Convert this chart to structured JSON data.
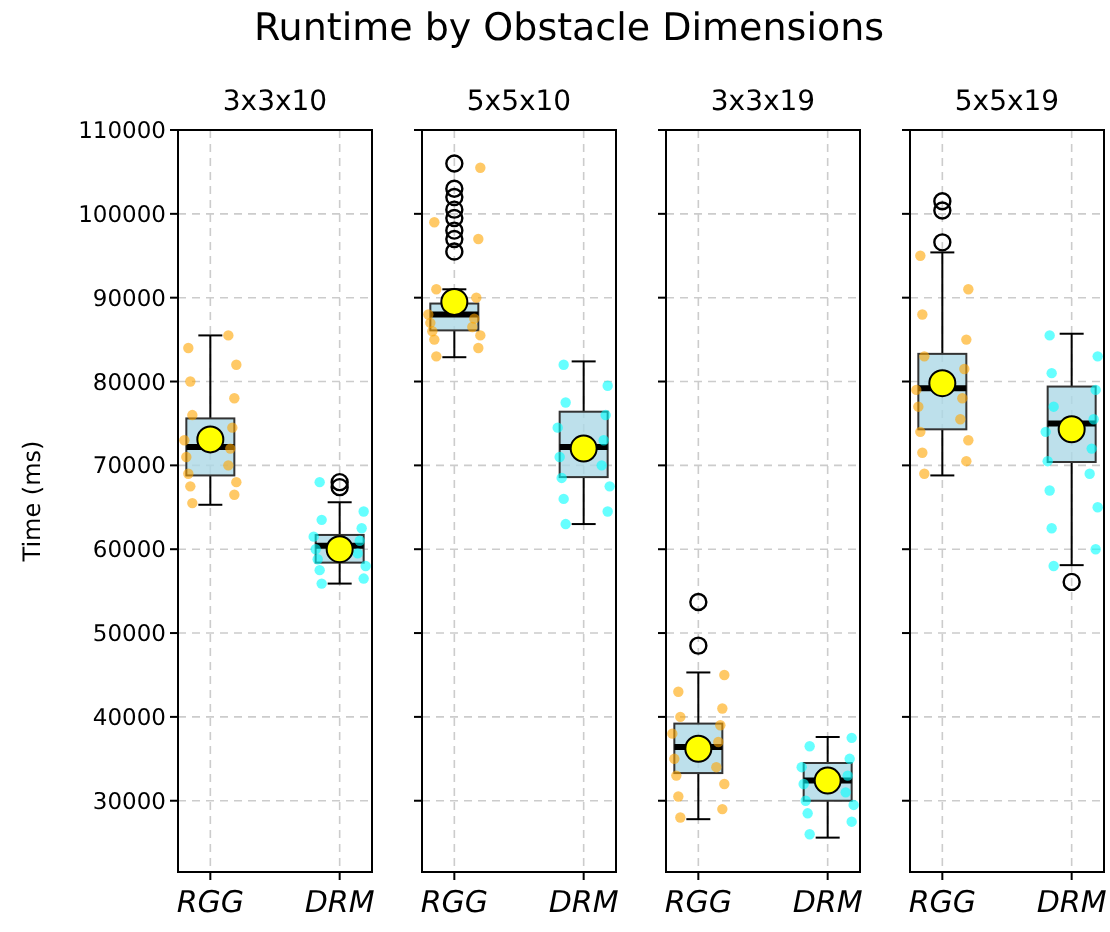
{
  "chart_data": [
    {
      "type": "box",
      "title": "3x3x10",
      "ylabel": "Time (ms)",
      "annotations": [
        "Runtime by Obstacle Dimensions"
      ],
      "categories": [
        "RGG",
        "DRM"
      ],
      "color": "#add8e6",
      "ylim": [
        21500,
        110000
      ],
      "yticks": [
        30000,
        40000,
        50000,
        60000,
        70000,
        80000,
        90000,
        100000,
        110000
      ],
      "grid": true,
      "boxes": [
        {
          "low": 65300,
          "q1": 68800,
          "median": 72200,
          "q3": 75600,
          "high": 85500,
          "mean": 73100
        },
        {
          "low": 55900,
          "q1": 58400,
          "median": 60400,
          "q3": 61700,
          "high": 65600,
          "mean": 60000,
          "outliers": [
            68000,
            67400
          ]
        }
      ],
      "series": [
        {
          "type": "scatter",
          "color": "#ffa500",
          "x": [
            "RGG",
            "RGG",
            "RGG",
            "RGG",
            "RGG",
            "RGG",
            "RGG",
            "RGG",
            "RGG",
            "RGG",
            "RGG",
            "RGG",
            "RGG",
            "RGG",
            "RGG",
            "RGG"
          ],
          "values": [
            65500,
            66500,
            67500,
            68000,
            69000,
            70000,
            71000,
            72000,
            73000,
            74500,
            76000,
            78000,
            80000,
            82000,
            84000,
            85500
          ]
        },
        {
          "type": "scatter",
          "color": "#00ffff",
          "x": [
            "DRM",
            "DRM",
            "DRM",
            "DRM",
            "DRM",
            "DRM",
            "DRM",
            "DRM",
            "DRM",
            "DRM",
            "DRM",
            "DRM",
            "DRM"
          ],
          "values": [
            55900,
            56500,
            57500,
            58000,
            58800,
            59500,
            60000,
            61000,
            61500,
            62500,
            63500,
            64500,
            68000
          ]
        }
      ]
    },
    {
      "type": "box",
      "title": "5x5x10",
      "tick_labels": "x",
      "categories": [
        "RGG",
        "DRM"
      ],
      "color": "#add8e6",
      "ylim": [
        21500,
        110000
      ],
      "yticks": [
        30000,
        40000,
        50000,
        60000,
        70000,
        80000,
        90000,
        100000,
        110000
      ],
      "grid": true,
      "boxes": [
        {
          "low": 82900,
          "q1": 86100,
          "median": 88000,
          "q3": 89300,
          "high": 91000,
          "mean": 89500,
          "outliers": [
            106000,
            103000,
            102000,
            100500,
            99500,
            98000,
            97000,
            95500
          ]
        },
        {
          "low": 63000,
          "q1": 68600,
          "median": 72200,
          "q3": 76400,
          "high": 82400,
          "mean": 72000
        }
      ],
      "series": [
        {
          "type": "scatter",
          "color": "#ffa500",
          "x": [
            "RGG",
            "RGG",
            "RGG",
            "RGG",
            "RGG",
            "RGG",
            "RGG",
            "RGG",
            "RGG",
            "RGG",
            "RGG",
            "RGG",
            "RGG",
            "RGG"
          ],
          "values": [
            83000,
            84000,
            85000,
            85500,
            86000,
            86500,
            87000,
            87500,
            88000,
            90000,
            91000,
            97000,
            99000,
            105500
          ]
        },
        {
          "type": "scatter",
          "color": "#00ffff",
          "x": [
            "DRM",
            "DRM",
            "DRM",
            "DRM",
            "DRM",
            "DRM",
            "DRM",
            "DRM",
            "DRM",
            "DRM",
            "DRM",
            "DRM",
            "DRM"
          ],
          "values": [
            63000,
            64500,
            66000,
            67500,
            68500,
            70000,
            71000,
            73000,
            74500,
            76000,
            77500,
            79500,
            82000
          ]
        }
      ]
    },
    {
      "type": "box",
      "title": "3x3x19",
      "tick_labels": "x",
      "categories": [
        "RGG",
        "DRM"
      ],
      "color": "#add8e6",
      "ylim": [
        21500,
        110000
      ],
      "yticks": [
        30000,
        40000,
        50000,
        60000,
        70000,
        80000,
        90000,
        100000,
        110000
      ],
      "grid": true,
      "boxes": [
        {
          "low": 27800,
          "q1": 33300,
          "median": 36400,
          "q3": 39200,
          "high": 45300,
          "mean": 36200,
          "outliers": [
            53700,
            48500
          ]
        },
        {
          "low": 25600,
          "q1": 30000,
          "median": 32400,
          "q3": 34500,
          "high": 37600,
          "mean": 32400
        }
      ],
      "series": [
        {
          "type": "scatter",
          "color": "#ffa500",
          "x": [
            "RGG",
            "RGG",
            "RGG",
            "RGG",
            "RGG",
            "RGG",
            "RGG",
            "RGG",
            "RGG",
            "RGG",
            "RGG",
            "RGG",
            "RGG",
            "RGG"
          ],
          "values": [
            28000,
            29000,
            30500,
            32000,
            33000,
            34000,
            35000,
            37000,
            38000,
            39000,
            40000,
            41000,
            43000,
            45000
          ]
        },
        {
          "type": "scatter",
          "color": "#00ffff",
          "x": [
            "DRM",
            "DRM",
            "DRM",
            "DRM",
            "DRM",
            "DRM",
            "DRM",
            "DRM",
            "DRM",
            "DRM",
            "DRM",
            "DRM"
          ],
          "values": [
            26000,
            27500,
            28500,
            29500,
            30000,
            31000,
            32000,
            33000,
            34000,
            35000,
            36500,
            37500
          ]
        }
      ]
    },
    {
      "type": "box",
      "title": "5x5x19",
      "tick_labels": "x",
      "categories": [
        "RGG",
        "DRM"
      ],
      "color": "#add8e6",
      "ylim": [
        21500,
        110000
      ],
      "yticks": [
        30000,
        40000,
        50000,
        60000,
        70000,
        80000,
        90000,
        100000,
        110000
      ],
      "grid": true,
      "boxes": [
        {
          "low": 68800,
          "q1": 74300,
          "median": 79200,
          "q3": 83300,
          "high": 95400,
          "mean": 79800,
          "outliers": [
            101500,
            100400,
            96600
          ]
        },
        {
          "low": 58100,
          "q1": 70400,
          "median": 75000,
          "q3": 79400,
          "high": 85700,
          "mean": 74300,
          "outliers": [
            56100
          ]
        }
      ],
      "series": [
        {
          "type": "scatter",
          "color": "#ffa500",
          "x": [
            "RGG",
            "RGG",
            "RGG",
            "RGG",
            "RGG",
            "RGG",
            "RGG",
            "RGG",
            "RGG",
            "RGG",
            "RGG",
            "RGG",
            "RGG",
            "RGG",
            "RGG"
          ],
          "values": [
            69000,
            70500,
            71500,
            73000,
            74000,
            75500,
            77000,
            78000,
            79000,
            81500,
            83000,
            85000,
            88000,
            91000,
            95000
          ]
        },
        {
          "type": "scatter",
          "color": "#00ffff",
          "x": [
            "DRM",
            "DRM",
            "DRM",
            "DRM",
            "DRM",
            "DRM",
            "DRM",
            "DRM",
            "DRM",
            "DRM",
            "DRM",
            "DRM",
            "DRM",
            "DRM",
            "DRM"
          ],
          "values": [
            58000,
            60000,
            62500,
            65000,
            67000,
            69000,
            70500,
            72000,
            74000,
            75500,
            77000,
            79000,
            81000,
            83000,
            85500
          ]
        }
      ]
    }
  ]
}
